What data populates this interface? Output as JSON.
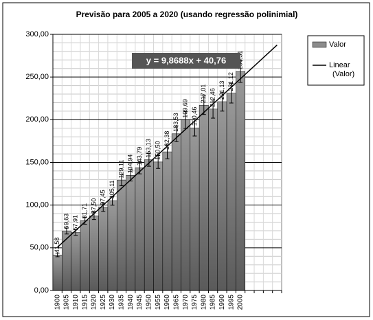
{
  "chart_data": {
    "type": "bar",
    "title": "Previsão para 2005 a 2020 (usando regressão polinimial)",
    "categories": [
      "1900",
      "1905",
      "1910",
      "1915",
      "1920",
      "1925",
      "1930",
      "1935",
      "1940",
      "1945",
      "1950",
      "1955",
      "1960",
      "1965",
      "1970",
      "1975",
      "1980",
      "1985",
      "1990",
      "1995",
      "2000",
      null,
      null,
      null,
      null
    ],
    "series": [
      {
        "name": "Valor",
        "color": "#8c8c8c",
        "values": [
          41.58,
          69.63,
          67.91,
          81.71,
          87.5,
          97.45,
          105.11,
          129.11,
          134.94,
          143.79,
          153.13,
          150.5,
          162.38,
          183.53,
          199.69,
          190.46,
          217.01,
          212.46,
          221.13,
          231.12,
          256.51,
          null,
          null,
          null,
          null
        ],
        "value_labels": [
          "41,58",
          "69,63",
          "67,91",
          "81,71",
          "87,50",
          "97,45",
          "105,11",
          "129,11",
          "134,94",
          "143,79",
          "153,13",
          "150,50",
          "162,38",
          "183,53",
          "199,69",
          "190,46",
          "217,01",
          "212,46",
          "221,13",
          "231,12",
          "256,51",
          null,
          null,
          null,
          null
        ]
      }
    ],
    "error_percent": 5,
    "trendline": {
      "name": "Linear (Valor)",
      "label": "y = 9,8688x + 40,76",
      "slope": 9.8688,
      "intercept": 40.76,
      "color": "#000000"
    },
    "ylim": [
      0,
      300
    ],
    "yticks": [
      {
        "value": 0,
        "label": "0,00"
      },
      {
        "value": 50,
        "label": "50,00"
      },
      {
        "value": 100,
        "label": "100,00"
      },
      {
        "value": 150,
        "label": "150,00"
      },
      {
        "value": 200,
        "label": "200,00"
      },
      {
        "value": 250,
        "label": "250,00"
      },
      {
        "value": 300,
        "label": "300,00"
      }
    ],
    "minor_gridlines": [
      10,
      20,
      30,
      40,
      60,
      70,
      80,
      90,
      110,
      120,
      130,
      140,
      160,
      170,
      180,
      190,
      210,
      220,
      230,
      240,
      260,
      270,
      280,
      290
    ],
    "grid": true,
    "legend": "right"
  }
}
